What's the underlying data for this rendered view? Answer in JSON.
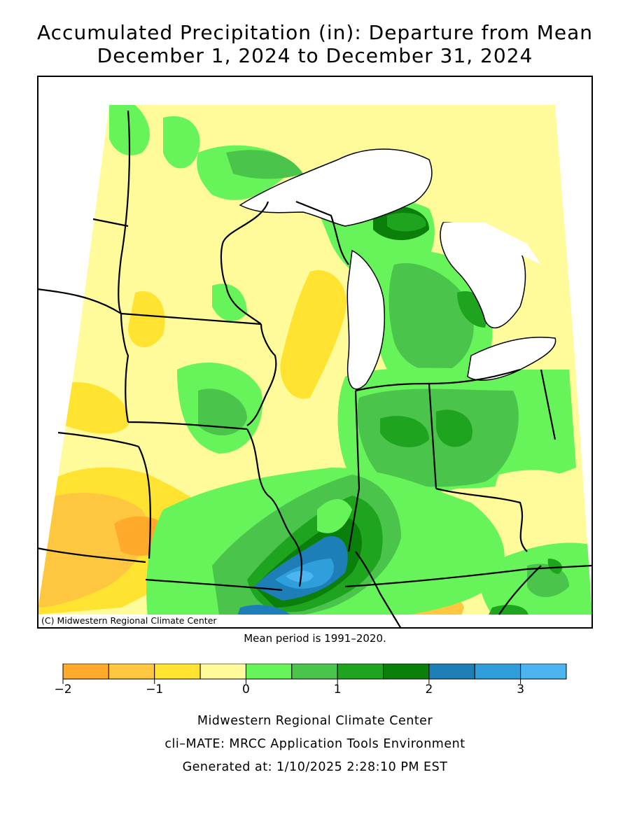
{
  "title": {
    "line1": "Accumulated Precipitation (in): Departure from Mean",
    "line2": "December 1, 2024 to December 31, 2024"
  },
  "map": {
    "credit": "(C) Midwestern Regional Climate Center",
    "mean_note": "Mean period is 1991–2020.",
    "water_color": "#ffffff",
    "region": "Midwest United States"
  },
  "legend": {
    "unit": "in",
    "bins": [
      {
        "from": -2.0,
        "to": -1.5,
        "color": "#ffaa2a"
      },
      {
        "from": -1.5,
        "to": -1.0,
        "color": "#ffc640"
      },
      {
        "from": -1.0,
        "to": -0.5,
        "color": "#ffe330"
      },
      {
        "from": -0.5,
        "to": 0.0,
        "color": "#fffb9a"
      },
      {
        "from": 0.0,
        "to": 0.5,
        "color": "#66f45a"
      },
      {
        "from": 0.5,
        "to": 1.0,
        "color": "#4ac44a"
      },
      {
        "from": 1.0,
        "to": 1.5,
        "color": "#1ea41e"
      },
      {
        "from": 1.5,
        "to": 2.0,
        "color": "#0a7f0a"
      },
      {
        "from": 2.0,
        "to": 2.5,
        "color": "#1e7fb8"
      },
      {
        "from": 2.5,
        "to": 3.0,
        "color": "#2f9fdc"
      },
      {
        "from": 3.0,
        "to": 3.5,
        "color": "#4cb4ef"
      }
    ],
    "ticks": [
      {
        "value": -2,
        "label": "−2"
      },
      {
        "value": -1,
        "label": "−1"
      },
      {
        "value": 0,
        "label": "0"
      },
      {
        "value": 1,
        "label": "1"
      },
      {
        "value": 2,
        "label": "2"
      },
      {
        "value": 3,
        "label": "3"
      }
    ]
  },
  "footer": {
    "line1": "Midwestern Regional Climate Center",
    "line2": "cli–MATE: MRCC Application Tools Environment",
    "line3": "Generated at: 1/10/2025 2:28:10 PM EST"
  }
}
